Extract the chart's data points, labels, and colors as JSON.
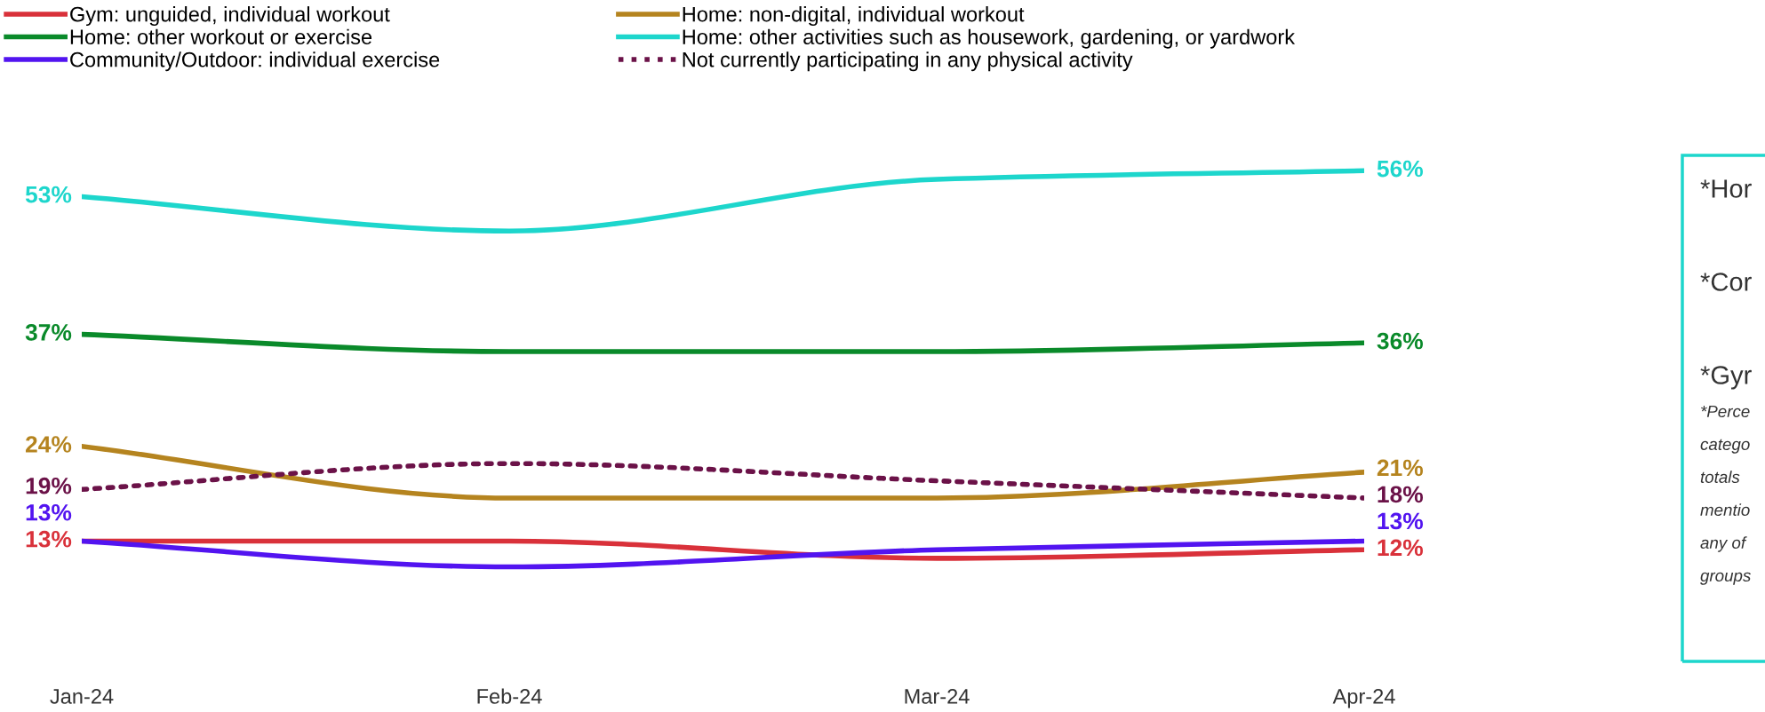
{
  "chart_data": {
    "type": "line",
    "categories": [
      "Jan-24",
      "Feb-24",
      "Mar-24",
      "Apr-24"
    ],
    "legend": "top",
    "grid": false,
    "tick_labels": "x",
    "series": [
      {
        "name": "Gym: unguided, individual workout",
        "color": "#d9313a",
        "values": [
          13,
          13,
          11,
          12
        ],
        "value_labels": [
          "13%",
          null,
          null,
          "12%"
        ]
      },
      {
        "name": "Home: other workout or exercise",
        "color": "#0a8a2a",
        "values": [
          37,
          35,
          35,
          36
        ],
        "value_labels": [
          "37%",
          null,
          null,
          "36%"
        ]
      },
      {
        "name": "Community/Outdoor: individual exercise",
        "color": "#5214f0",
        "values": [
          13,
          10,
          12,
          13
        ],
        "value_labels": [
          "13%",
          null,
          null,
          "13%"
        ]
      },
      {
        "name": "Home: non-digital, individual workout",
        "color": "#b5841f",
        "values": [
          24,
          18,
          18,
          21
        ],
        "value_labels": [
          "24%",
          null,
          null,
          "21%"
        ]
      },
      {
        "name": "Home: other activities such as housework, gardening, or yardwork",
        "color": "#1dd6cc",
        "values": [
          53,
          49,
          55,
          56
        ],
        "value_labels": [
          "53%",
          null,
          null,
          "56%"
        ]
      },
      {
        "name": "Not currently participating in any physical activity",
        "color": "#6b1248",
        "line_style": "dotted",
        "values": [
          19,
          22,
          20,
          18
        ],
        "value_labels": [
          "19%",
          null,
          null,
          "18%"
        ]
      }
    ],
    "annotations": [
      "*Hor",
      "*Cor",
      "*Gyr",
      "*Perce",
      "catego",
      "totals",
      "mentio",
      "any of",
      "groups"
    ]
  }
}
